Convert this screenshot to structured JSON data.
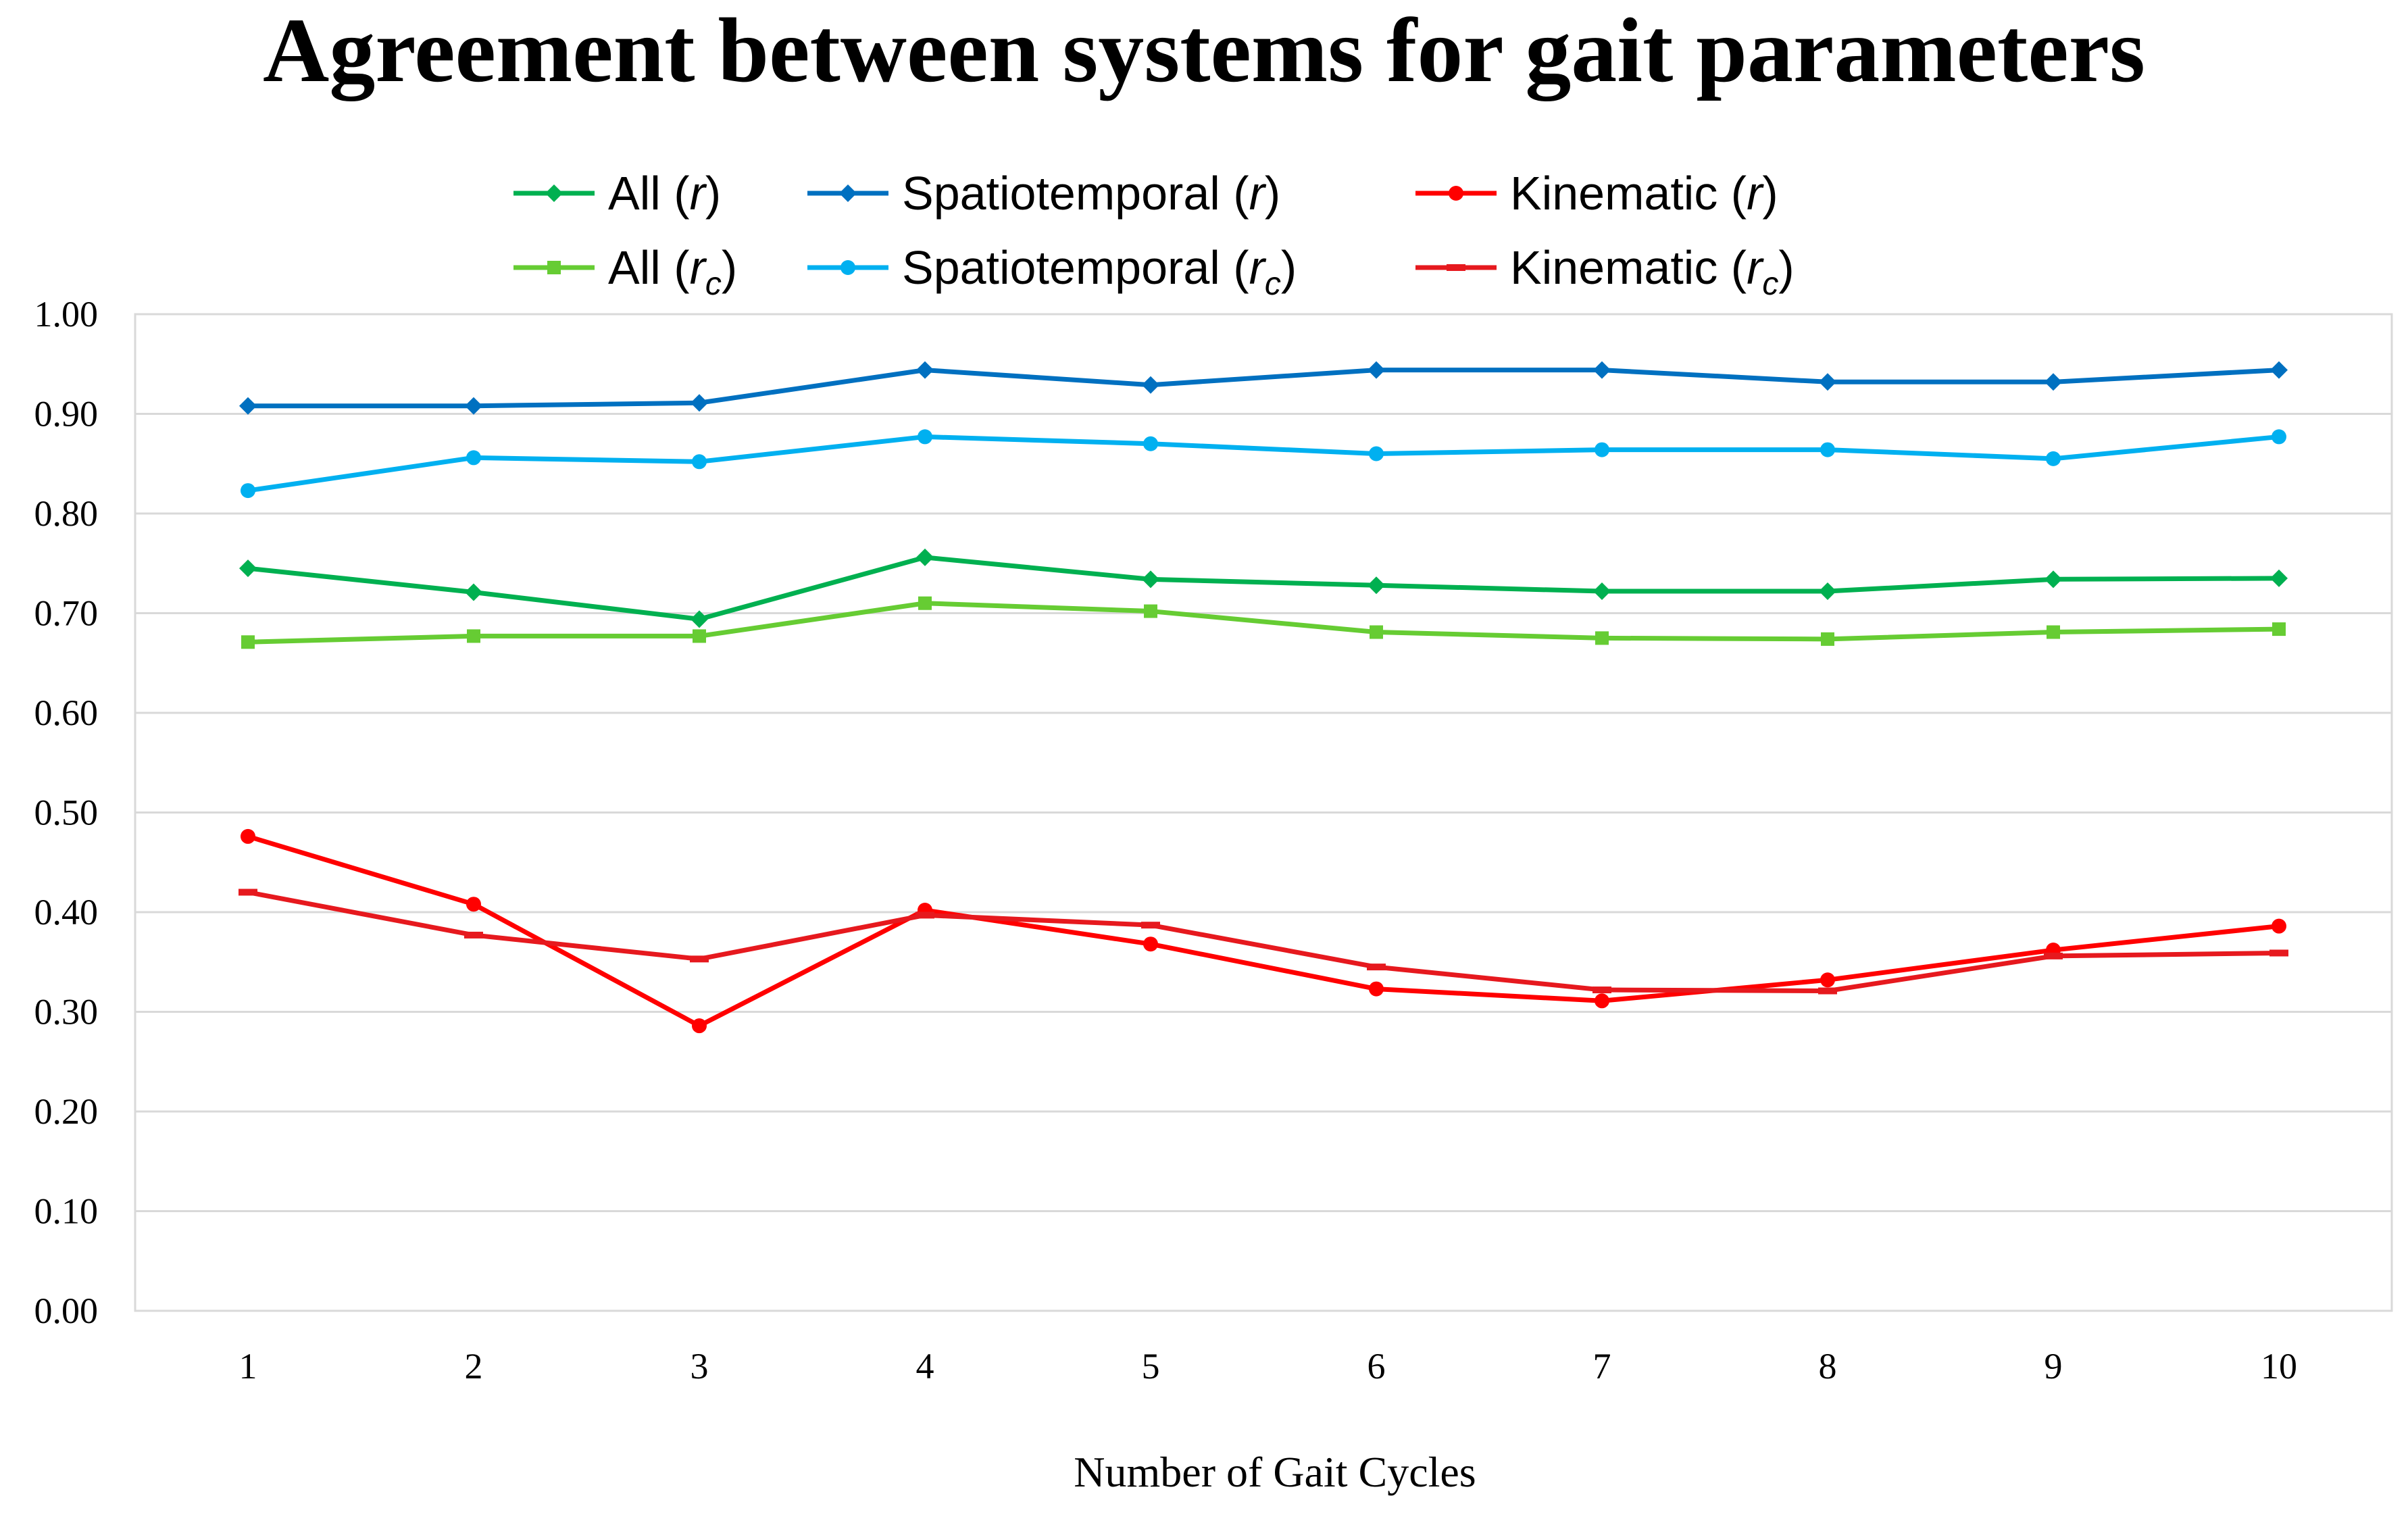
{
  "chart_data": {
    "type": "line",
    "title": "Agreement between systems for gait parameters",
    "xlabel": "Number of Gait Cycles",
    "ylabel": "",
    "categories": [
      "1",
      "2",
      "3",
      "4",
      "5",
      "6",
      "7",
      "8",
      "9",
      "10"
    ],
    "ylim": [
      0,
      1
    ],
    "yticks": [
      "0.00",
      "0.10",
      "0.20",
      "0.30",
      "0.40",
      "0.50",
      "0.60",
      "0.70",
      "0.80",
      "0.90",
      "1.00"
    ],
    "grid": true,
    "legend_position": "top",
    "series": [
      {
        "name": "All",
        "sym": "r",
        "sub": "",
        "color": "#00b050",
        "marker": "diamond",
        "values": [
          0.745,
          0.721,
          0.694,
          0.756,
          0.734,
          0.728,
          0.722,
          0.722,
          0.734,
          0.735
        ]
      },
      {
        "name": "Spatiotemporal",
        "sym": "r",
        "sub": "",
        "color": "#0070c0",
        "marker": "diamond",
        "values": [
          0.908,
          0.908,
          0.911,
          0.944,
          0.929,
          0.944,
          0.944,
          0.932,
          0.932,
          0.944
        ]
      },
      {
        "name": "Kinematic",
        "sym": "r",
        "sub": "",
        "color": "#ff0000",
        "marker": "circle",
        "values": [
          0.476,
          0.408,
          0.286,
          0.402,
          0.368,
          0.323,
          0.311,
          0.332,
          0.362,
          0.386
        ]
      },
      {
        "name": "All",
        "sym": "r",
        "sub": "c",
        "color": "#66cc33",
        "marker": "square",
        "values": [
          0.671,
          0.677,
          0.677,
          0.71,
          0.702,
          0.681,
          0.675,
          0.674,
          0.681,
          0.684
        ]
      },
      {
        "name": "Spatiotemporal",
        "sym": "r",
        "sub": "c",
        "color": "#00b0f0",
        "marker": "circle",
        "values": [
          0.823,
          0.856,
          0.852,
          0.877,
          0.87,
          0.86,
          0.864,
          0.864,
          0.855,
          0.877
        ]
      },
      {
        "name": "Kinematic",
        "sym": "r",
        "sub": "c",
        "color": "#e6191e",
        "marker": "dash",
        "values": [
          0.42,
          0.377,
          0.353,
          0.397,
          0.387,
          0.345,
          0.322,
          0.321,
          0.356,
          0.359
        ]
      }
    ]
  }
}
